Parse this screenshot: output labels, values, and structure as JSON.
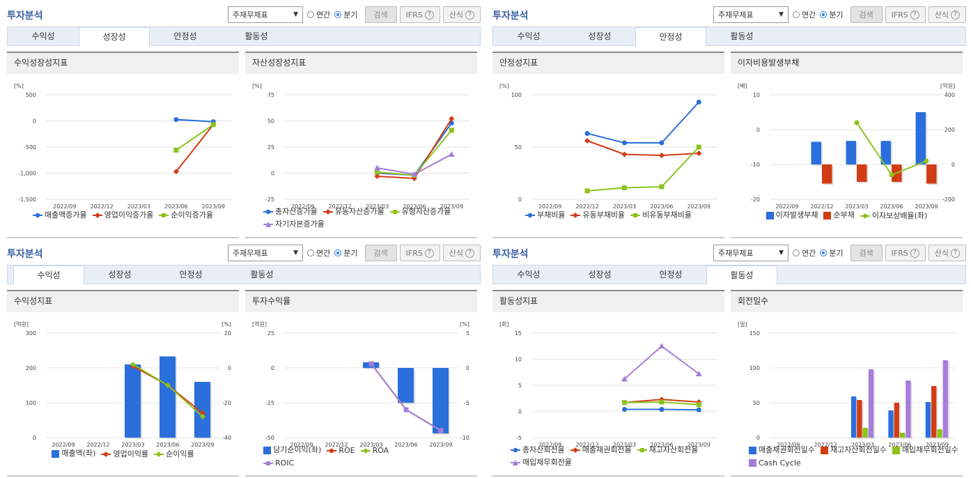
{
  "panels": [
    {
      "title": "투자분석",
      "select_label": "주재무제표",
      "radio_annual": "연간",
      "radio_quarter": "분기",
      "radio_selected": "quarter",
      "search_label": "검색",
      "ifrs_label": "IFRS",
      "formula_label": "산식",
      "tabs": [
        "수익성",
        "성장성",
        "안정성",
        "활동성"
      ],
      "active_tab": 1,
      "charts": [
        {
          "head": "수익성장성지표"
        },
        {
          "head": "자산성장성지표"
        }
      ]
    },
    {
      "title": "투자분석",
      "select_label": "주재무제표",
      "radio_annual": "연간",
      "radio_quarter": "분기",
      "radio_selected": "quarter",
      "search_label": "검색",
      "ifrs_label": "IFRS",
      "formula_label": "산식",
      "tabs": [
        "수익성",
        "성장성",
        "안정성",
        "활동성"
      ],
      "active_tab": 2,
      "charts": [
        {
          "head": "안정성지표"
        },
        {
          "head": "이자비용발생부채"
        }
      ]
    },
    {
      "title": "투자분석",
      "select_label": "주재무제표",
      "radio_annual": "연간",
      "radio_quarter": "분기",
      "radio_selected": "quarter",
      "search_label": "검색",
      "ifrs_label": "IFRS",
      "formula_label": "산식",
      "tabs": [
        "수익성",
        "성장성",
        "안정성",
        "활동성"
      ],
      "active_tab": 0,
      "charts": [
        {
          "head": "수익성지표"
        },
        {
          "head": "투자수익률"
        }
      ]
    },
    {
      "title": "투자분석",
      "select_label": "주재무제표",
      "radio_annual": "연간",
      "radio_quarter": "분기",
      "radio_selected": "quarter",
      "search_label": "검색",
      "ifrs_label": "IFRS",
      "formula_label": "산식",
      "tabs": [
        "수익성",
        "성장성",
        "안정성",
        "활동성"
      ],
      "active_tab": 3,
      "charts": [
        {
          "head": "활동성지표"
        },
        {
          "head": "회전일수"
        }
      ]
    }
  ],
  "colors": {
    "blue": "#2a6fdb",
    "red": "#d23c15",
    "green": "#8cc31c",
    "purple": "#a77ddb"
  },
  "chart_data": [
    {
      "id": "c0",
      "type": "line",
      "title": "수익성장성지표",
      "unit_left": "[%]",
      "ylim": [
        -1500,
        500
      ],
      "yticks": [
        500,
        0,
        -500,
        -1000,
        -1500
      ],
      "ytick_labels": [
        "500",
        "0",
        "-500",
        "-1,000",
        "-1,500"
      ],
      "categories": [
        "2022/09",
        "2022/12",
        "2023/03",
        "2023/06",
        "2023/09"
      ],
      "series": [
        {
          "name": "매출액증가율",
          "color": "#2a6fdb",
          "marker": "circle",
          "values": [
            null,
            null,
            null,
            25,
            -15
          ]
        },
        {
          "name": "영업이익증가율",
          "color": "#d23c15",
          "marker": "diamond",
          "values": [
            null,
            null,
            null,
            -970,
            -70
          ]
        },
        {
          "name": "순이익증가율",
          "color": "#8cc31c",
          "marker": "square",
          "values": [
            null,
            null,
            null,
            -560,
            -70
          ]
        }
      ]
    },
    {
      "id": "c1",
      "type": "line",
      "title": "자산성장성지표",
      "unit_left": "[%]",
      "ylim": [
        -25,
        75
      ],
      "yticks": [
        75,
        50,
        25,
        0,
        -25
      ],
      "ytick_labels": [
        "75",
        "50",
        "25",
        "0",
        "-25"
      ],
      "categories": [
        "2022/09",
        "2022/12",
        "2023/03",
        "2023/06",
        "2023/09"
      ],
      "series": [
        {
          "name": "총자산증가율",
          "color": "#2a6fdb",
          "marker": "circle",
          "values": [
            null,
            null,
            0,
            -2,
            48
          ]
        },
        {
          "name": "유동자산증가율",
          "color": "#d23c15",
          "marker": "diamond",
          "values": [
            null,
            null,
            -3,
            -5,
            52
          ]
        },
        {
          "name": "유형자산증가율",
          "color": "#8cc31c",
          "marker": "square",
          "values": [
            null,
            null,
            1,
            -2,
            41
          ]
        },
        {
          "name": "자기자본증가율",
          "color": "#a77ddb",
          "marker": "triangle",
          "values": [
            null,
            null,
            5,
            -1,
            18
          ]
        }
      ]
    },
    {
      "id": "c2",
      "type": "line",
      "title": "안정성지표",
      "unit_left": "[%]",
      "ylim": [
        0,
        100
      ],
      "yticks": [
        100,
        50,
        0
      ],
      "ytick_labels": [
        "100",
        "50",
        "0"
      ],
      "categories": [
        "2022/09",
        "2022/12",
        "2023/03",
        "2023/06",
        "2023/09"
      ],
      "series": [
        {
          "name": "부채비율",
          "color": "#2a6fdb",
          "marker": "circle",
          "values": [
            null,
            63,
            54,
            54,
            93
          ]
        },
        {
          "name": "유동부채비율",
          "color": "#d23c15",
          "marker": "diamond",
          "values": [
            null,
            56,
            43,
            42,
            44
          ]
        },
        {
          "name": "비유동부채비율",
          "color": "#8cc31c",
          "marker": "square",
          "values": [
            null,
            8,
            11,
            12,
            50
          ]
        }
      ]
    },
    {
      "id": "c3",
      "type": "bar-line",
      "title": "이자비용발생부채",
      "unit_left": "[배]",
      "unit_right": "[억원]",
      "ylim": [
        -20,
        10
      ],
      "y2lim": [
        -200,
        400
      ],
      "yticks": [
        10,
        0,
        -10,
        -20
      ],
      "ytick_labels": [
        "10",
        "0",
        "-10",
        "-20"
      ],
      "y2ticks": [
        400,
        200,
        0,
        -200
      ],
      "y2tick_labels": [
        "400",
        "200",
        "0",
        "-200"
      ],
      "categories": [
        "2022/09",
        "2022/12",
        "2023/03",
        "2023/06",
        "2023/09"
      ],
      "bars": [
        {
          "name": "이자발생부채",
          "color": "#2a6fdb",
          "values": [
            null,
            130,
            135,
            135,
            300
          ]
        },
        {
          "name": "순부채",
          "color": "#d23c15",
          "values": [
            null,
            -110,
            -100,
            -100,
            -110
          ]
        }
      ],
      "lines": [
        {
          "name": "이자보상배율(좌)",
          "color": "#8cc31c",
          "marker": "circle",
          "values": [
            null,
            null,
            2,
            -13,
            -9
          ]
        }
      ]
    },
    {
      "id": "c4",
      "type": "bar-line",
      "title": "수익성지표",
      "unit_left": "[억원]",
      "unit_right": "[%]",
      "ylim": [
        0,
        300
      ],
      "y2lim": [
        -40,
        20
      ],
      "yticks": [
        300,
        200,
        100,
        0
      ],
      "ytick_labels": [
        "300",
        "200",
        "100",
        "0"
      ],
      "y2ticks": [
        20,
        0,
        -20,
        -40
      ],
      "y2tick_labels": [
        "20",
        "0",
        "-20",
        "-40"
      ],
      "categories": [
        "2022/09",
        "2022/12",
        "2023/03",
        "2023/06",
        "2023/09"
      ],
      "bars": [
        {
          "name": "매출액(좌)",
          "color": "#2a6fdb",
          "values": [
            null,
            null,
            210,
            233,
            160
          ]
        }
      ],
      "lines": [
        {
          "name": "영업이익률",
          "color": "#d23c15",
          "marker": "diamond",
          "values": [
            null,
            null,
            1,
            -10,
            -26
          ]
        },
        {
          "name": "순이익률",
          "color": "#8cc31c",
          "marker": "diamond",
          "values": [
            null,
            null,
            2,
            -10,
            -28
          ]
        }
      ]
    },
    {
      "id": "c5",
      "type": "bar-line",
      "title": "투자수익률",
      "unit_left": "[억원]",
      "unit_right": "[%]",
      "ylim": [
        -50,
        25
      ],
      "y2lim": [
        -10,
        5
      ],
      "yticks": [
        25,
        0,
        -25,
        -50
      ],
      "ytick_labels": [
        "25",
        "0",
        "-25",
        "-50"
      ],
      "y2ticks": [
        5,
        0,
        -5,
        -10
      ],
      "y2tick_labels": [
        "5",
        "0",
        "-5",
        "-10"
      ],
      "categories": [
        "2022/09",
        "2022/12",
        "2023/03",
        "2023/06",
        "2023/09"
      ],
      "bars": [
        {
          "name": "당기순이익(좌)",
          "color": "#2a6fdb",
          "values": [
            null,
            null,
            4,
            -25,
            -47
          ]
        }
      ],
      "lines": [
        {
          "name": "ROE",
          "color": "#d23c15",
          "marker": "circle",
          "values": [
            null,
            null,
            0.6,
            -6,
            -9
          ]
        },
        {
          "name": "ROA",
          "color": "#8cc31c",
          "marker": "diamond",
          "values": [
            null,
            null,
            0.6,
            -6,
            -9
          ]
        },
        {
          "name": "ROIC",
          "color": "#a77ddb",
          "marker": "square",
          "values": [
            null,
            null,
            0.6,
            -6,
            -9
          ]
        }
      ]
    },
    {
      "id": "c6",
      "type": "line",
      "title": "활동성지표",
      "unit_left": "[회]",
      "ylim": [
        -5,
        15
      ],
      "yticks": [
        15,
        10,
        5,
        0,
        -5
      ],
      "ytick_labels": [
        "15",
        "10",
        "5",
        "0",
        "-5"
      ],
      "categories": [
        "2022/09",
        "2022/12",
        "2023/03",
        "2023/06",
        "2023/09"
      ],
      "series": [
        {
          "name": "총자산회전율",
          "color": "#2a6fdb",
          "marker": "circle",
          "values": [
            null,
            null,
            0.4,
            0.4,
            0.3
          ]
        },
        {
          "name": "매출채권회전율",
          "color": "#d23c15",
          "marker": "diamond",
          "values": [
            null,
            null,
            1.7,
            2.3,
            1.8
          ]
        },
        {
          "name": "재고자산회전율",
          "color": "#8cc31c",
          "marker": "square",
          "values": [
            null,
            null,
            1.7,
            1.8,
            1.3
          ]
        },
        {
          "name": "매입채무회전율",
          "color": "#a77ddb",
          "marker": "triangle",
          "values": [
            null,
            null,
            6.2,
            12.5,
            7.2
          ]
        }
      ]
    },
    {
      "id": "c7",
      "type": "bar",
      "title": "회전일수",
      "unit_left": "[일]",
      "ylim": [
        0,
        150
      ],
      "yticks": [
        150,
        100,
        50,
        0
      ],
      "ytick_labels": [
        "150",
        "100",
        "50",
        "0"
      ],
      "categories": [
        "2022/09",
        "2022/12",
        "2023/03",
        "2023/06",
        "2023/09"
      ],
      "bars": [
        {
          "name": "매출채권회전일수",
          "color": "#2a6fdb",
          "values": [
            null,
            null,
            59,
            39,
            51
          ]
        },
        {
          "name": "재고자산회전일수",
          "color": "#d23c15",
          "values": [
            null,
            null,
            54,
            50,
            74
          ]
        },
        {
          "name": "매입채무회전일수",
          "color": "#8cc31c",
          "values": [
            null,
            null,
            14,
            7,
            12
          ]
        },
        {
          "name": "Cash Cycle",
          "color": "#a77ddb",
          "values": [
            null,
            null,
            98,
            82,
            111
          ]
        }
      ],
      "lines": []
    }
  ]
}
